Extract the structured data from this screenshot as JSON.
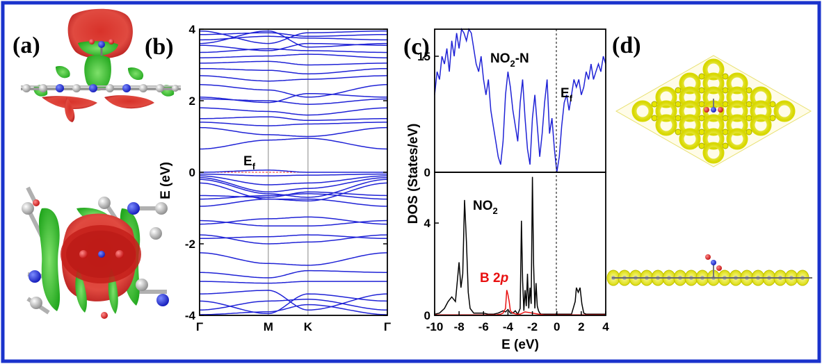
{
  "figure": {
    "frame_color": "#1a33cc",
    "panel_labels": [
      "(a)",
      "(b)",
      "(c)",
      "(d)"
    ]
  },
  "chart_data": [
    {
      "id": "b",
      "type": "line",
      "title": "",
      "xlabel": "",
      "ylabel": "E (eV)",
      "ylim": [
        -4,
        4
      ],
      "yticks": [
        "-4",
        "-2",
        "0",
        "2",
        "4"
      ],
      "kpoints": [
        "Γ",
        "M",
        "K",
        "Γ"
      ],
      "kpos": [
        0,
        1,
        1.5774,
        2.7321
      ],
      "fermi_level": 0,
      "fermi_label": "E",
      "fermi_sub": "f",
      "band_color": "#1f22d6",
      "fermi_color": "#ff3030",
      "series": [
        {
          "name": "b1",
          "values": [
            -3.98,
            -3.9,
            -3.7,
            -3.98
          ]
        },
        {
          "name": "b2",
          "values": [
            -3.85,
            -3.6,
            -3.55,
            -3.85
          ]
        },
        {
          "name": "b3",
          "values": [
            -3.6,
            -3.95,
            -3.4,
            -3.6
          ]
        },
        {
          "name": "b4",
          "values": [
            -3.4,
            -3.3,
            -3.85,
            -3.4
          ]
        },
        {
          "name": "b5",
          "values": [
            -3.05,
            -3.1,
            -3.05,
            -3.05
          ]
        },
        {
          "name": "b6",
          "values": [
            -2.8,
            -2.95,
            -2.75,
            -2.8
          ]
        },
        {
          "name": "b7",
          "values": [
            -2.25,
            -2.55,
            -2.6,
            -2.25
          ]
        },
        {
          "name": "b8",
          "values": [
            -1.85,
            -1.8,
            -1.75,
            -1.85
          ]
        },
        {
          "name": "b9",
          "values": [
            -1.75,
            -2.0,
            -1.95,
            -1.75
          ]
        },
        {
          "name": "b10",
          "values": [
            -1.45,
            -1.3,
            -1.25,
            -1.45
          ]
        },
        {
          "name": "b11",
          "values": [
            -1.35,
            -1.5,
            -1.5,
            -1.35
          ]
        },
        {
          "name": "b12",
          "values": [
            -0.95,
            -0.75,
            -0.75,
            -0.95
          ]
        },
        {
          "name": "b13",
          "values": [
            -0.75,
            -0.65,
            -0.6,
            -0.75
          ]
        },
        {
          "name": "b14",
          "values": [
            -0.65,
            -0.7,
            -0.55,
            -0.65
          ]
        },
        {
          "name": "b15",
          "values": [
            -0.3,
            -0.75,
            -0.8,
            -0.3
          ]
        },
        {
          "name": "b16",
          "values": [
            -0.2,
            -0.6,
            -0.7,
            -0.2
          ]
        },
        {
          "name": "b17",
          "values": [
            -0.15,
            -0.55,
            -0.45,
            -0.15
          ]
        },
        {
          "name": "b18",
          "values": [
            -0.1,
            -0.35,
            -0.3,
            -0.1
          ]
        },
        {
          "name": "b19",
          "values": [
            -0.05,
            -0.1,
            -0.08,
            -0.05
          ]
        },
        {
          "name": "b20",
          "values": [
            0.0,
            0.06,
            0.0,
            0.0
          ]
        },
        {
          "name": "b21",
          "values": [
            0.65,
            0.9,
            0.95,
            0.65
          ]
        },
        {
          "name": "b22",
          "values": [
            1.25,
            1.05,
            1.0,
            1.25
          ]
        },
        {
          "name": "b23",
          "values": [
            1.4,
            1.3,
            1.35,
            1.4
          ]
        },
        {
          "name": "b24",
          "values": [
            1.5,
            1.55,
            1.45,
            1.5
          ]
        },
        {
          "name": "b25",
          "values": [
            1.8,
            1.7,
            1.6,
            1.8
          ]
        },
        {
          "name": "b26",
          "values": [
            2.05,
            2.0,
            1.9,
            2.05
          ]
        },
        {
          "name": "b27",
          "values": [
            2.1,
            1.95,
            2.2,
            2.1
          ]
        },
        {
          "name": "b28",
          "values": [
            2.45,
            2.3,
            2.1,
            2.45
          ]
        },
        {
          "name": "b29",
          "values": [
            2.7,
            2.55,
            2.6,
            2.7
          ]
        },
        {
          "name": "b30",
          "values": [
            2.9,
            2.85,
            2.75,
            2.9
          ]
        },
        {
          "name": "b31",
          "values": [
            3.05,
            3.1,
            3.0,
            3.05
          ]
        },
        {
          "name": "b32",
          "values": [
            3.2,
            3.25,
            3.3,
            3.2
          ]
        },
        {
          "name": "b33",
          "values": [
            3.35,
            3.45,
            3.4,
            3.35
          ]
        },
        {
          "name": "b34",
          "values": [
            3.55,
            3.4,
            3.6,
            3.55
          ]
        },
        {
          "name": "b35",
          "values": [
            3.7,
            3.8,
            3.75,
            3.7
          ]
        },
        {
          "name": "b36",
          "values": [
            3.85,
            3.9,
            3.8,
            3.85
          ]
        },
        {
          "name": "b37",
          "values": [
            3.95,
            3.6,
            3.9,
            3.95
          ]
        },
        {
          "name": "b38",
          "values": [
            3.6,
            3.95,
            3.5,
            3.6
          ]
        }
      ]
    },
    {
      "id": "c-top",
      "type": "line",
      "title": "",
      "xlabel": "E (eV)",
      "ylabel": "DOS (States/eV)",
      "xlim": [
        -10,
        4
      ],
      "ylim": [
        0,
        18.5
      ],
      "yticks": [
        "0",
        "15"
      ],
      "xticks": [
        "-10",
        "-8",
        "-6",
        "-4",
        "-2",
        "0",
        "2",
        "4"
      ],
      "annotation": "NO",
      "annotation_sub": "2",
      "annotation_tail": "-N",
      "fermi_label": "E",
      "fermi_sub": "f",
      "series": [
        {
          "name": "NO2-N",
          "color": "#1f22d6",
          "x": [
            -10,
            -9.8,
            -9.6,
            -9.4,
            -9.2,
            -9.0,
            -8.8,
            -8.6,
            -8.4,
            -8.2,
            -8.0,
            -7.8,
            -7.6,
            -7.4,
            -7.2,
            -7.0,
            -6.8,
            -6.6,
            -6.4,
            -6.2,
            -6.0,
            -5.8,
            -5.6,
            -5.4,
            -5.2,
            -5.0,
            -4.8,
            -4.6,
            -4.4,
            -4.2,
            -4.0,
            -3.8,
            -3.6,
            -3.4,
            -3.2,
            -3.0,
            -2.8,
            -2.6,
            -2.4,
            -2.2,
            -2.0,
            -1.8,
            -1.6,
            -1.4,
            -1.2,
            -1.0,
            -0.8,
            -0.6,
            -0.4,
            -0.2,
            0.0,
            0.2,
            0.4,
            0.6,
            0.8,
            1.0,
            1.2,
            1.4,
            1.6,
            1.8,
            2.0,
            2.2,
            2.4,
            2.6,
            2.8,
            3.0,
            3.2,
            3.4,
            3.6,
            3.8,
            4.0
          ],
          "values": [
            10,
            13,
            12,
            15,
            14,
            16,
            13,
            17,
            15,
            18,
            16,
            19,
            18,
            17,
            19,
            18,
            16,
            14,
            13,
            15,
            12,
            10,
            12,
            8,
            6,
            4,
            2,
            1,
            4,
            10,
            13,
            11,
            8,
            6,
            4,
            9,
            12,
            7,
            3,
            1,
            7,
            10,
            6,
            2,
            5,
            9,
            12,
            5,
            7,
            3,
            0,
            2,
            6,
            9,
            10,
            8,
            10,
            12,
            11,
            12,
            10,
            11,
            13,
            12,
            14,
            12,
            13,
            14,
            13,
            15,
            14
          ]
        }
      ]
    },
    {
      "id": "c-bottom",
      "type": "line",
      "title": "",
      "xlabel": "E (eV)",
      "ylabel": "DOS (States/eV)",
      "xlim": [
        -10,
        4
      ],
      "ylim": [
        0,
        6.2
      ],
      "yticks": [
        "0",
        "4"
      ],
      "annotation_black": "NO",
      "annotation_black_sub": "2",
      "annotation_red": "B 2",
      "annotation_red_italic": "p",
      "series": [
        {
          "name": "NO2",
          "color": "#000000",
          "x": [
            -10,
            -9.6,
            -9.2,
            -8.9,
            -8.6,
            -8.3,
            -8.0,
            -7.85,
            -7.7,
            -7.55,
            -7.4,
            -7.25,
            -7.1,
            -6.8,
            -6.4,
            -6.0,
            -5.6,
            -5.2,
            -4.8,
            -4.4,
            -4.2,
            -4.0,
            -3.8,
            -3.6,
            -3.4,
            -3.2,
            -3.0,
            -2.9,
            -2.8,
            -2.7,
            -2.6,
            -2.5,
            -2.4,
            -2.3,
            -2.2,
            -2.1,
            -2.0,
            -1.9,
            -1.8,
            -1.7,
            -1.6,
            -1.5,
            -1.4,
            -1.3,
            -1.2,
            -1.1,
            -1.0,
            -0.6,
            0.0,
            0.6,
            1.2,
            1.5,
            1.6,
            1.75,
            1.9,
            2.05,
            2.2,
            2.4,
            2.8,
            3.4,
            4.0
          ],
          "values": [
            0.05,
            0.1,
            0.3,
            0.6,
            0.8,
            0.6,
            2.3,
            1.2,
            1.8,
            5.0,
            3.2,
            1.0,
            0.3,
            0.1,
            0.1,
            0.1,
            0.05,
            0.05,
            0.1,
            0.2,
            0.15,
            0.25,
            0.1,
            0.1,
            0.2,
            0.05,
            0.3,
            4.1,
            1.5,
            0.2,
            1.1,
            0.4,
            1.8,
            0.3,
            1.2,
            0.5,
            6.0,
            2.2,
            0.3,
            1.4,
            0.4,
            0.2,
            0.1,
            0.05,
            0.05,
            0.05,
            0.05,
            0.05,
            0.05,
            0.05,
            0.05,
            0.6,
            1.2,
            1.0,
            1.2,
            0.5,
            0.1,
            0.05,
            0.05,
            0.05,
            0.05
          ]
        },
        {
          "name": "B 2p",
          "color": "#e81010",
          "x": [
            -10,
            -8,
            -6,
            -5,
            -4.6,
            -4.4,
            -4.2,
            -4.1,
            -4.0,
            -3.9,
            -3.8,
            -3.6,
            -3.3,
            -3.0,
            -2.6,
            -2.0,
            -1.5,
            -1.0,
            0.0,
            1.0,
            2.0,
            3.0,
            4.0
          ],
          "values": [
            0.02,
            0.02,
            0.02,
            0.02,
            0.05,
            0.1,
            0.3,
            1.1,
            0.9,
            0.6,
            0.2,
            0.1,
            0.05,
            0.05,
            0.15,
            0.1,
            0.05,
            0.02,
            0.02,
            0.02,
            0.02,
            0.02,
            0.02
          ]
        }
      ]
    }
  ]
}
